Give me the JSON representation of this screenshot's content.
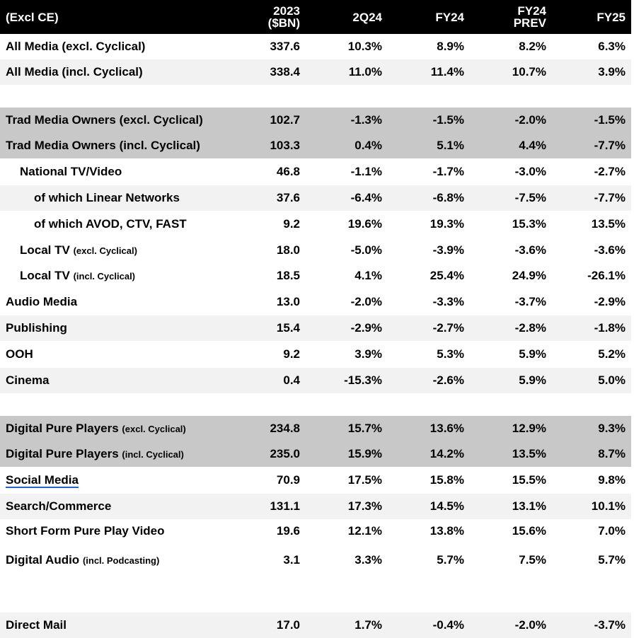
{
  "chart_data": {
    "type": "table",
    "columns": [
      "(Excl CE)",
      "2023 ($BN)",
      "2Q24",
      "FY24",
      "FY24 PREV",
      "FY25"
    ],
    "header": {
      "label": "(Excl CE)",
      "c1a": "2023",
      "c1b": "($BN)",
      "c2": "2Q24",
      "c3": "FY24",
      "c4a": "FY24",
      "c4b": "PREV",
      "c5": "FY25"
    },
    "rows": [
      {
        "label": "All Media (excl. Cyclical)",
        "sub": "",
        "v": [
          "337.6",
          "10.3%",
          "8.9%",
          "8.2%",
          "6.3%"
        ],
        "bg": "white",
        "indent": 0,
        "h": 36
      },
      {
        "label": "All Media (incl. Cyclical)",
        "sub": "",
        "v": [
          "338.4",
          "11.0%",
          "11.4%",
          "10.7%",
          "3.9%"
        ],
        "bg": "light",
        "indent": 0,
        "h": 36
      },
      {
        "label": "",
        "sub": "",
        "v": [
          "",
          "",
          "",
          "",
          ""
        ],
        "bg": "white",
        "indent": 0,
        "h": 32
      },
      {
        "label": "Trad Media Owners (excl. Cyclical)",
        "sub": "",
        "v": [
          "102.7",
          "-1.3%",
          "-1.5%",
          "-2.0%",
          "-1.5%"
        ],
        "bg": "dark",
        "indent": 0,
        "h": 36
      },
      {
        "label": "Trad Media Owners (incl. Cyclical)",
        "sub": "",
        "v": [
          "103.3",
          "0.4%",
          "5.1%",
          "4.4%",
          "-7.7%"
        ],
        "bg": "dark",
        "indent": 0,
        "h": 36
      },
      {
        "label": "National TV/Video",
        "sub": "",
        "v": [
          "46.8",
          "-1.1%",
          "-1.7%",
          "-3.0%",
          "-2.7%"
        ],
        "bg": "white",
        "indent": 1,
        "h": 38
      },
      {
        "label": "of which Linear Networks",
        "sub": "",
        "v": [
          "37.6",
          "-6.4%",
          "-6.8%",
          "-7.5%",
          "-7.7%"
        ],
        "bg": "light",
        "indent": 2,
        "h": 36
      },
      {
        "label": "of which AVOD, CTV, FAST",
        "sub": "",
        "v": [
          "9.2",
          "19.6%",
          "19.3%",
          "15.3%",
          "13.5%"
        ],
        "bg": "white",
        "indent": 2,
        "h": 38
      },
      {
        "label": "Local TV",
        "sub": "(excl. Cyclical)",
        "v": [
          "18.0",
          "-5.0%",
          "-3.9%",
          "-3.6%",
          "-3.6%"
        ],
        "bg": "white",
        "indent": 1,
        "h": 36
      },
      {
        "label": "Local TV",
        "sub": "(incl. Cyclical)",
        "v": [
          "18.5",
          "4.1%",
          "25.4%",
          "24.9%",
          "-26.1%"
        ],
        "bg": "white",
        "indent": 1,
        "h": 36
      },
      {
        "label": "Audio Media",
        "sub": "",
        "v": [
          "13.0",
          "-2.0%",
          "-3.3%",
          "-3.7%",
          "-2.9%"
        ],
        "bg": "white",
        "indent": 0,
        "h": 38
      },
      {
        "label": "Publishing",
        "sub": "",
        "v": [
          "15.4",
          "-2.9%",
          "-2.7%",
          "-2.8%",
          "-1.8%"
        ],
        "bg": "light",
        "indent": 0,
        "h": 36
      },
      {
        "label": "OOH",
        "sub": "",
        "v": [
          "9.2",
          "3.9%",
          "5.3%",
          "5.9%",
          "5.2%"
        ],
        "bg": "white",
        "indent": 0,
        "h": 38
      },
      {
        "label": "Cinema",
        "sub": "",
        "v": [
          "0.4",
          "-15.3%",
          "-2.6%",
          "5.9%",
          "5.0%"
        ],
        "bg": "light",
        "indent": 0,
        "h": 36
      },
      {
        "label": "",
        "sub": "",
        "v": [
          "",
          "",
          "",
          "",
          ""
        ],
        "bg": "white",
        "indent": 0,
        "h": 32
      },
      {
        "label": "Digital Pure Players",
        "sub": "(excl. Cyclical)",
        "v": [
          "234.8",
          "15.7%",
          "13.6%",
          "12.9%",
          "9.3%"
        ],
        "bg": "dark",
        "indent": 0,
        "h": 36
      },
      {
        "label": "Digital Pure Players",
        "sub": "(incl. Cyclical)",
        "v": [
          "235.0",
          "15.9%",
          "14.2%",
          "13.5%",
          "8.7%"
        ],
        "bg": "dark",
        "indent": 0,
        "h": 36
      },
      {
        "label": "Social Media",
        "sub": "",
        "v": [
          "70.9",
          "17.5%",
          "15.8%",
          "15.5%",
          "9.8%"
        ],
        "bg": "white",
        "indent": 0,
        "h": 38,
        "underline": true
      },
      {
        "label": "Search/Commerce",
        "sub": "",
        "v": [
          "131.1",
          "17.3%",
          "14.5%",
          "13.1%",
          "10.1%"
        ],
        "bg": "light",
        "indent": 0,
        "h": 36
      },
      {
        "label": "Short Form Pure Play Video",
        "sub": "",
        "v": [
          "19.6",
          "12.1%",
          "13.8%",
          "15.6%",
          "7.0%"
        ],
        "bg": "white",
        "indent": 0,
        "h": 34
      },
      {
        "label": "Digital Audio",
        "sub": "(incl. Podcasting)",
        "v": [
          "3.1",
          "3.3%",
          "5.7%",
          "7.5%",
          "5.7%"
        ],
        "bg": "white",
        "indent": 0,
        "h": 48
      },
      {
        "label": "",
        "sub": "",
        "v": [
          "",
          "",
          "",
          "",
          ""
        ],
        "bg": "white",
        "indent": 0,
        "h": 50
      },
      {
        "label": "Direct Mail",
        "sub": "",
        "v": [
          "17.0",
          "1.7%",
          "-0.4%",
          "-2.0%",
          "-3.7%"
        ],
        "bg": "light",
        "indent": 0,
        "h": 36
      }
    ]
  }
}
